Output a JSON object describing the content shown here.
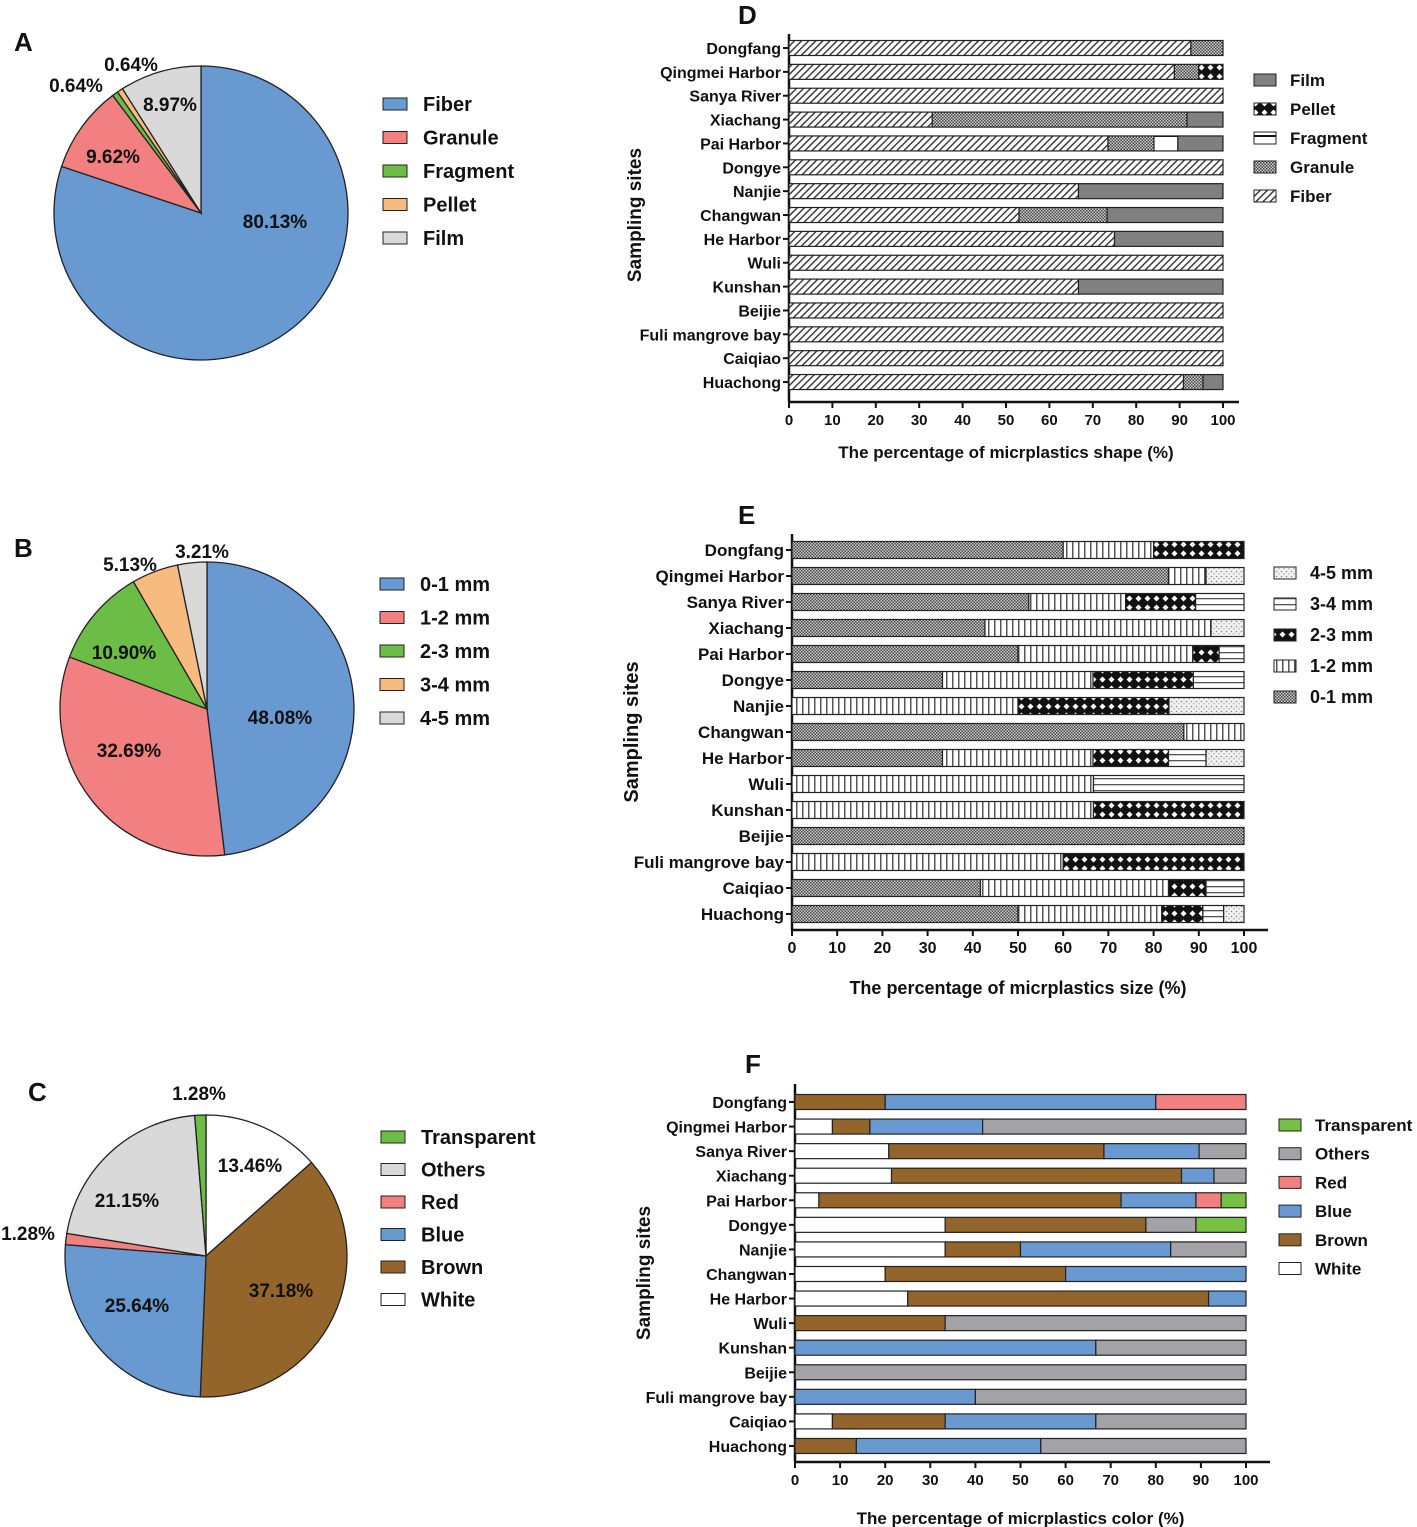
{
  "chart_data": [
    {
      "panel": "A",
      "type": "pie",
      "labels": [
        "Fiber",
        "Granule",
        "Fragment",
        "Pellet",
        "Film"
      ],
      "values": [
        80.13,
        9.62,
        0.64,
        0.64,
        8.97
      ],
      "value_labels": [
        "80.13%",
        "9.62%",
        "0.64%",
        "0.64%",
        "8.97%"
      ],
      "colors": [
        "#6899d0",
        "#f28080",
        "#6cbd45",
        "#f7bb80",
        "#d9d9d9"
      ]
    },
    {
      "panel": "B",
      "type": "pie",
      "labels": [
        "0-1 mm",
        "1-2 mm",
        "2-3 mm",
        "3-4 mm",
        "4-5 mm"
      ],
      "values": [
        48.08,
        32.69,
        10.9,
        5.13,
        3.21
      ],
      "value_labels": [
        "48.08%",
        "32.69%",
        "10.90%",
        "5.13%",
        "3.21%"
      ],
      "colors": [
        "#6899d0",
        "#f28080",
        "#6cbd45",
        "#f7bb80",
        "#d9d9d9"
      ]
    },
    {
      "panel": "C",
      "type": "pie",
      "slice_order": [
        "White",
        "Brown",
        "Blue",
        "Red",
        "Others",
        "Transparent"
      ],
      "values": [
        13.46,
        37.18,
        25.64,
        1.28,
        21.15,
        1.28
      ],
      "value_labels": [
        "13.46%",
        "37.18%",
        "25.64%",
        "1.28%",
        "21.15%",
        "1.28%"
      ],
      "legend": [
        "Transparent",
        "Others",
        "Red",
        "Blue",
        "Brown",
        "White"
      ],
      "colors": {
        "White": "#ffffff",
        "Brown": "#94652a",
        "Blue": "#6899d0",
        "Red": "#f28080",
        "Others": "#d9d9d9",
        "Transparent": "#6cbd45"
      }
    },
    {
      "panel": "D",
      "type": "bar",
      "stacked": true,
      "orientation": "horizontal",
      "xlabel": "The percentage of micrplastics shape (%)",
      "ylabel": "Sampling sites",
      "xlim": [
        0,
        100
      ],
      "xticks": [
        0,
        10,
        20,
        30,
        40,
        50,
        60,
        70,
        80,
        90,
        100
      ],
      "categories": [
        "Dongfang",
        "Qingmei Harbor",
        "Sanya River",
        "Xiachang",
        "Pai Harbor",
        "Dongye",
        "Nanjie",
        "Changwan",
        "He Harbor",
        "Wuli",
        "Kunshan",
        "Beijie",
        "Fuli mangrove bay",
        "Caiqiao",
        "Huachong"
      ],
      "legend": [
        "Film",
        "Pellet",
        "Fragment",
        "Granule",
        "Fiber"
      ],
      "series": [
        {
          "name": "Fiber",
          "values": [
            92.6,
            88.8,
            100,
            33.0,
            73.5,
            100,
            66.7,
            53.0,
            75.0,
            100,
            66.7,
            100,
            100,
            100,
            90.9
          ]
        },
        {
          "name": "Granule",
          "values": [
            7.4,
            5.6,
            0,
            58.7,
            10.6,
            0,
            0,
            20.3,
            0,
            0,
            0,
            0,
            0,
            0,
            4.5
          ]
        },
        {
          "name": "Fragment",
          "values": [
            0,
            0,
            0,
            0,
            5.5,
            0,
            0,
            0,
            0,
            0,
            0,
            0,
            0,
            0,
            0
          ]
        },
        {
          "name": "Pellet",
          "values": [
            0,
            5.6,
            0,
            0,
            0,
            0,
            0,
            0,
            0,
            0,
            0,
            0,
            0,
            0,
            0
          ]
        },
        {
          "name": "Film",
          "values": [
            0,
            0,
            0,
            8.3,
            10.4,
            0,
            33.3,
            26.7,
            25.0,
            0,
            33.3,
            0,
            0,
            0,
            4.6
          ]
        }
      ]
    },
    {
      "panel": "E",
      "type": "bar",
      "stacked": true,
      "orientation": "horizontal",
      "xlabel": "The percentage of micrplastics size (%)",
      "ylabel": "Sampling sites",
      "xlim": [
        0,
        100
      ],
      "xticks": [
        0,
        10,
        20,
        30,
        40,
        50,
        60,
        70,
        80,
        90,
        100
      ],
      "categories": [
        "Dongfang",
        "Qingmei Harbor",
        "Sanya River",
        "Xiachang",
        "Pai Harbor",
        "Dongye",
        "Nanjie",
        "Changwan",
        "He Harbor",
        "Wuli",
        "Kunshan",
        "Beijie",
        "Fuli mangrove bay",
        "Caiqiao",
        "Huachong"
      ],
      "legend": [
        "4-5 mm",
        "3-4 mm",
        "2-3 mm",
        "1-2 mm",
        "0-1 mm"
      ],
      "series": [
        {
          "name": "0-1 mm",
          "values": [
            60,
            83.3,
            52.4,
            42.7,
            50,
            33.3,
            0,
            86.7,
            33.3,
            0,
            0,
            100,
            0,
            41.7,
            50
          ]
        },
        {
          "name": "1-2 mm",
          "values": [
            20,
            8.3,
            21.4,
            50,
            38.7,
            33.3,
            50,
            13.3,
            33.3,
            66.7,
            66.7,
            0,
            60,
            41.6,
            31.8
          ]
        },
        {
          "name": "2-3 mm",
          "values": [
            20,
            0,
            15.5,
            0,
            5.8,
            22.2,
            33.4,
            0,
            16.7,
            0,
            33.3,
            0,
            40,
            8.3,
            9.1
          ]
        },
        {
          "name": "3-4 mm",
          "values": [
            0,
            0,
            10.7,
            0,
            5.5,
            11.2,
            0,
            0,
            8.3,
            33.3,
            0,
            0,
            0,
            8.4,
            4.6
          ]
        },
        {
          "name": "4-5 mm",
          "values": [
            0,
            8.4,
            0,
            7.3,
            0,
            0,
            16.6,
            0,
            8.4,
            0,
            0,
            0,
            0,
            0,
            4.5
          ]
        }
      ]
    },
    {
      "panel": "F",
      "type": "bar",
      "stacked": true,
      "orientation": "horizontal",
      "xlabel": "The percentage of micrplastics color (%)",
      "ylabel": "Sampling sites",
      "xlim": [
        0,
        100
      ],
      "xticks": [
        0,
        10,
        20,
        30,
        40,
        50,
        60,
        70,
        80,
        90,
        100
      ],
      "categories": [
        "Dongfang",
        "Qingmei Harbor",
        "Sanya River",
        "Xiachang",
        "Pai Harbor",
        "Dongye",
        "Nanjie",
        "Changwan",
        "He Harbor",
        "Wuli",
        "Kunshan",
        "Beijie",
        "Fuli mangrove bay",
        "Caiqiao",
        "Huachong"
      ],
      "legend": [
        "Transparent",
        "Others",
        "Red",
        "Blue",
        "Brown",
        "White"
      ],
      "colors": {
        "White": "#ffffff",
        "Brown": "#94652a",
        "Blue": "#6899d0",
        "Red": "#f28080",
        "Others": "#a3a2a6",
        "Transparent": "#76c044"
      },
      "series": [
        {
          "name": "White",
          "values": [
            0,
            8.3,
            20.8,
            21.4,
            5.3,
            33.3,
            33.3,
            20,
            25,
            0,
            0,
            0,
            0,
            8.3,
            0
          ]
        },
        {
          "name": "Brown",
          "values": [
            20,
            8.3,
            47.7,
            64.3,
            67,
            44.5,
            16.7,
            40,
            66.7,
            33.3,
            0,
            0,
            0,
            25,
            13.6
          ]
        },
        {
          "name": "Blue",
          "values": [
            60,
            25,
            21.1,
            7.2,
            16.6,
            0,
            33.3,
            40,
            8.3,
            0,
            66.7,
            0,
            40,
            33.4,
            40.9
          ]
        },
        {
          "name": "Red",
          "values": [
            20,
            0,
            0,
            0,
            5.6,
            0,
            0,
            0,
            0,
            0,
            0,
            0,
            0,
            0,
            0
          ]
        },
        {
          "name": "Others",
          "values": [
            0,
            58.4,
            10.4,
            7.1,
            0,
            11.1,
            16.7,
            0,
            0,
            66.7,
            33.3,
            100,
            60,
            33.3,
            45.5
          ]
        },
        {
          "name": "Transparent",
          "values": [
            0,
            0,
            0,
            0,
            5.5,
            11.1,
            0,
            0,
            0,
            0,
            0,
            0,
            0,
            0,
            0
          ]
        }
      ]
    }
  ]
}
